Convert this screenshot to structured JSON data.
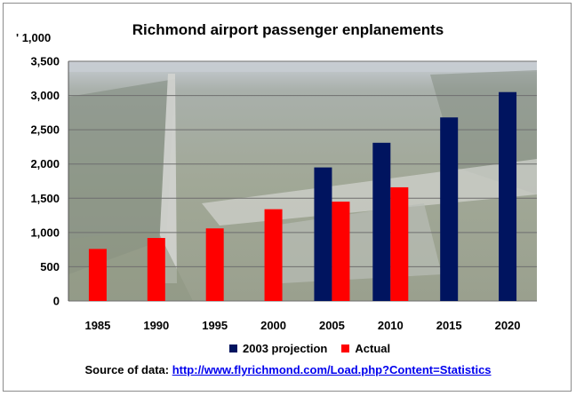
{
  "colors": {
    "projection": "#00145f",
    "actual": "#ff0000",
    "grid": "#6f6f6f",
    "sky": "#c6ccd2",
    "ground": "#a4ab9b",
    "forest": "#7f8a7d",
    "runway": "#d3d4d0"
  },
  "chart_data": {
    "type": "bar",
    "title": "Richmond airport passenger enplanements",
    "unit_label": "' 1,000",
    "xlabel": "",
    "ylabel": "",
    "categories": [
      "1985",
      "1990",
      "1995",
      "2000",
      "2005",
      "2010",
      "2015",
      "2020"
    ],
    "series": [
      {
        "name": "2003 projection",
        "color": "#00145f",
        "values": [
          null,
          null,
          null,
          null,
          1950,
          2310,
          2680,
          3050
        ]
      },
      {
        "name": "Actual",
        "color": "#ff0000",
        "values": [
          760,
          920,
          1060,
          1340,
          1450,
          1660,
          null,
          null
        ]
      }
    ],
    "ylim": [
      0,
      3500
    ],
    "yticks": [
      0,
      500,
      1000,
      1500,
      2000,
      2500,
      3000,
      3500
    ],
    "ytick_labels": [
      "0",
      "500",
      "1,000",
      "1,500",
      "2,000",
      "2,500",
      "3,000",
      "3,500"
    ],
    "grid": true,
    "legend": "bottom",
    "background": "aerial photo of airport"
  },
  "source": {
    "prefix": "Source of data: ",
    "link_text": "http://www.flyrichmond.com/Load.php?Content=Statistics"
  }
}
